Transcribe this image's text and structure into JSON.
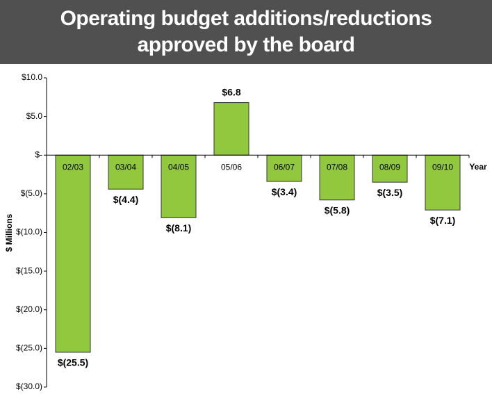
{
  "chart_data": {
    "type": "bar",
    "title": "Operating budget additions/reductions approved by the board",
    "categories": [
      "02/03",
      "03/04",
      "04/05",
      "05/06",
      "06/07",
      "07/08",
      "08/09",
      "09/10"
    ],
    "values": [
      -25.5,
      -4.4,
      -8.1,
      6.8,
      -3.4,
      -5.8,
      -3.5,
      -7.1
    ],
    "value_labels": [
      "$(25.5)",
      "$(4.4)",
      "$(8.1)",
      "$6.8",
      "$(3.4)",
      "$(5.8)",
      "$(3.5)",
      "$(7.1)"
    ],
    "color": "#92c83e",
    "x_label": "Year",
    "y_label": "$ Millions",
    "ylim": [
      -30,
      10
    ],
    "yticks": [
      {
        "value": 10,
        "label": "$10.0"
      },
      {
        "value": 5,
        "label": "$5.0"
      },
      {
        "value": 0,
        "label": "$-"
      },
      {
        "value": -5,
        "label": "$(5.0)"
      },
      {
        "value": -10,
        "label": "$(10.0)"
      },
      {
        "value": -15,
        "label": "$(15.0)"
      },
      {
        "value": -20,
        "label": "$(20.0)"
      },
      {
        "value": -25,
        "label": "$(25.0)"
      },
      {
        "value": -30,
        "label": "$(30.0)"
      }
    ],
    "grid": false
  }
}
